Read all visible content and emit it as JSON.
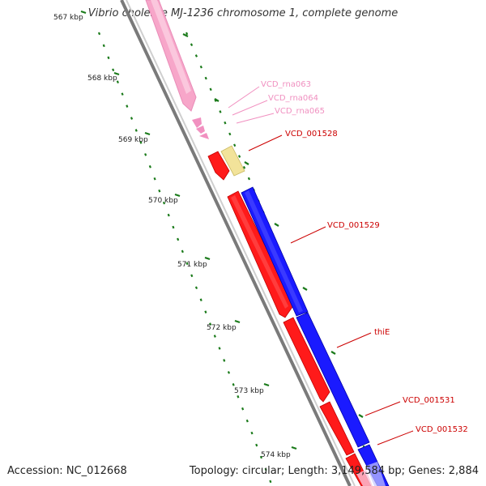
{
  "title": "Vibrio cholerae MJ-1236 chromosome 1, complete genome",
  "accession_text": "Accession: NC_012668",
  "summary_text": "Topology: circular; Length: 3,149,584 bp; Genes: 2,884",
  "colors": {
    "backbone": "#8c8c8c",
    "rna": "#f7a6c9",
    "cds_forward": "#ff1a1a",
    "cds_reverse": "#1a1aff",
    "other_gene": "#f2e39a",
    "tick_major": "#1a7a1a",
    "tick_minor": "#1a7a1a",
    "label_rna": "#f090c0",
    "label_cds": "#cc0000"
  },
  "ticks": [
    {
      "label": "567 kbp"
    },
    {
      "label": "568 kbp"
    },
    {
      "label": "569 kbp"
    },
    {
      "label": "570 kbp"
    },
    {
      "label": "571 kbp"
    },
    {
      "label": "572 kbp"
    },
    {
      "label": "573 kbp"
    },
    {
      "label": "574 kbp"
    }
  ],
  "features": [
    {
      "label": "VCD_rna063",
      "type": "rna"
    },
    {
      "label": "VCD_rna064",
      "type": "rna"
    },
    {
      "label": "VCD_rna065",
      "type": "rna"
    },
    {
      "label": "VCD_001528",
      "type": "cds"
    },
    {
      "label": "VCD_001529",
      "type": "cds"
    },
    {
      "label": "thiE",
      "type": "cds"
    },
    {
      "label": "VCD_001531",
      "type": "cds"
    },
    {
      "label": "VCD_001532",
      "type": "cds"
    }
  ]
}
